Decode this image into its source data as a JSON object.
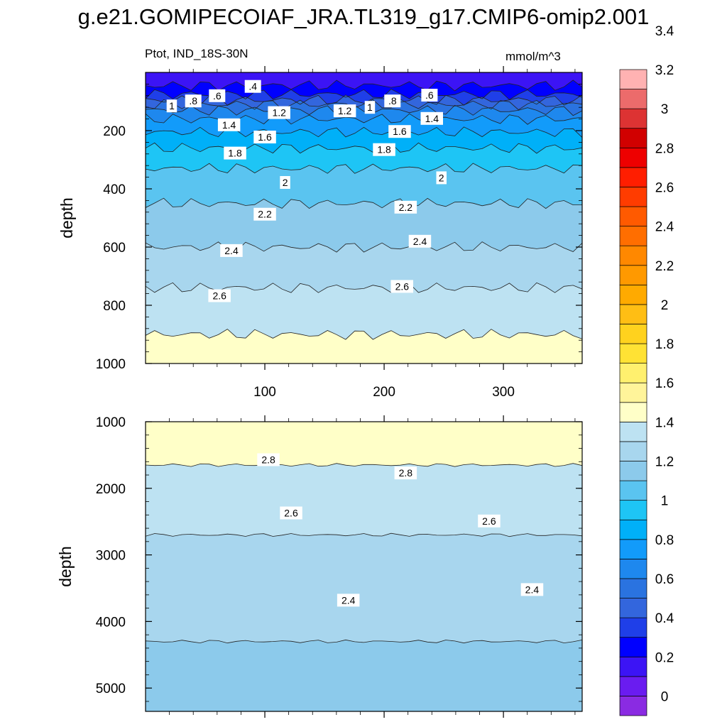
{
  "title": "g.e21.GOMIPECOIAF_JRA.TL319_g17.CMIP6-omip2.001",
  "subtitle": "Ptot, IND_18S-30N",
  "units": "mmol/m^3",
  "colors": {
    "levels": [
      "#8a2be2",
      "#6a1cf0",
      "#3c14f5",
      "#0000ff",
      "#1f3fe8",
      "#3366dd",
      "#2a73e0",
      "#1e88ee",
      "#129bfa",
      "#00b0f8",
      "#1ec5f5",
      "#5ac4f0",
      "#8ccaeb",
      "#a8d6ee",
      "#bde2f2",
      "#ffffc8",
      "#fff49a",
      "#fff06e",
      "#ffe234",
      "#ffd21e",
      "#ffbe14",
      "#ffaa00",
      "#ff9900",
      "#ff8800",
      "#ff6e00",
      "#ff5a00",
      "#ff3c00",
      "#ff1e00",
      "#ee0000",
      "#d10000",
      "#dd3333",
      "#ec6b6b",
      "#ffb2b2"
    ]
  },
  "chart_data": [
    {
      "type": "contour",
      "panel": "upper",
      "xlabel": "",
      "ylabel": "depth",
      "xlim": [
        0,
        366
      ],
      "ylim": [
        1000,
        0
      ],
      "xticks": [
        100,
        200,
        300
      ],
      "yticks": [
        200,
        400,
        600,
        800,
        1000
      ],
      "grid": false,
      "contours": [
        {
          "level": 0.4,
          "depth": 45
        },
        {
          "level": 0.6,
          "depth": 75
        },
        {
          "level": 0.8,
          "depth": 95
        },
        {
          "level": 1.0,
          "depth": 110
        },
        {
          "level": 1.2,
          "depth": 130
        },
        {
          "level": 1.4,
          "depth": 160
        },
        {
          "level": 1.6,
          "depth": 205
        },
        {
          "level": 1.8,
          "depth": 260
        },
        {
          "level": 2.0,
          "depth": 330
        },
        {
          "level": 2.2,
          "depth": 450
        },
        {
          "level": 2.4,
          "depth": 600
        },
        {
          "level": 2.6,
          "depth": 740
        },
        {
          "level": 2.8,
          "depth": 900
        }
      ],
      "labels": [
        {
          "text": ".4",
          "x": 90,
          "depth": 48
        },
        {
          "text": ".6",
          "x": 60,
          "depth": 80
        },
        {
          "text": ".6",
          "x": 238,
          "depth": 78
        },
        {
          "text": ".8",
          "x": 40,
          "depth": 98
        },
        {
          "text": ".8",
          "x": 207,
          "depth": 98
        },
        {
          "text": "1",
          "x": 22,
          "depth": 115
        },
        {
          "text": "1",
          "x": 188,
          "depth": 120
        },
        {
          "text": "1.2",
          "x": 112,
          "depth": 138
        },
        {
          "text": "1.2",
          "x": 167,
          "depth": 132
        },
        {
          "text": "1.4",
          "x": 70,
          "depth": 180
        },
        {
          "text": "1.4",
          "x": 240,
          "depth": 158
        },
        {
          "text": "1.6",
          "x": 100,
          "depth": 222
        },
        {
          "text": "1.6",
          "x": 213,
          "depth": 203
        },
        {
          "text": "1.8",
          "x": 75,
          "depth": 277
        },
        {
          "text": "1.8",
          "x": 200,
          "depth": 265
        },
        {
          "text": "2",
          "x": 117,
          "depth": 378
        },
        {
          "text": "2",
          "x": 248,
          "depth": 362
        },
        {
          "text": "2.2",
          "x": 100,
          "depth": 487
        },
        {
          "text": "2.2",
          "x": 218,
          "depth": 463
        },
        {
          "text": "2.4",
          "x": 72,
          "depth": 612
        },
        {
          "text": "2.4",
          "x": 230,
          "depth": 580
        },
        {
          "text": "2.6",
          "x": 62,
          "depth": 767
        },
        {
          "text": "2.6",
          "x": 215,
          "depth": 735
        }
      ]
    },
    {
      "type": "contour",
      "panel": "lower",
      "xlabel": "",
      "ylabel": "depth",
      "xlim": [
        0,
        366
      ],
      "ylim": [
        5350,
        1000
      ],
      "xticks": [
        100,
        200,
        300
      ],
      "yticks": [
        1000,
        2000,
        3000,
        4000,
        5000
      ],
      "grid": false,
      "contours": [
        {
          "level": 2.8,
          "depth": 1650
        },
        {
          "level": 2.6,
          "depth": 2700
        },
        {
          "level": 2.4,
          "depth": 4300
        }
      ],
      "labels": [
        {
          "text": "2.8",
          "x": 103,
          "depth": 1570
        },
        {
          "text": "2.8",
          "x": 218,
          "depth": 1770
        },
        {
          "text": "2.6",
          "x": 122,
          "depth": 2370
        },
        {
          "text": "2.6",
          "x": 288,
          "depth": 2490
        },
        {
          "text": "2.4",
          "x": 170,
          "depth": 3680
        },
        {
          "text": "2.4",
          "x": 324,
          "depth": 3520
        }
      ]
    }
  ],
  "colorbar": {
    "labels": [
      "0",
      "0.2",
      "0.4",
      "0.6",
      "0.8",
      "1",
      "1.2",
      "1.4",
      "1.6",
      "1.8",
      "2",
      "2.2",
      "2.4",
      "2.6",
      "2.8",
      "3",
      "3.2",
      "3.4"
    ]
  }
}
